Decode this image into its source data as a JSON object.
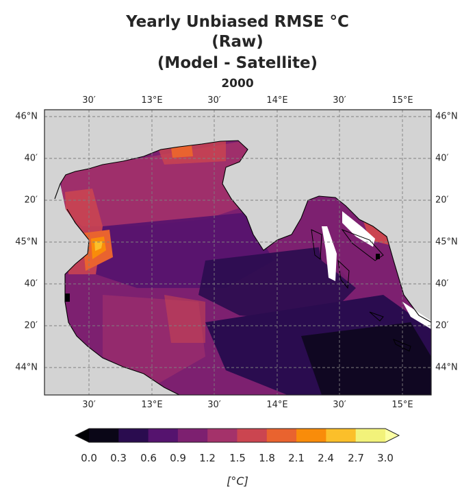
{
  "title": {
    "line1": "Yearly Unbiased RMSE °C",
    "line2": "(Raw)",
    "line3": "(Model - Satellite)"
  },
  "subtitle": "2000",
  "map": {
    "lon_ticks": [
      "30′",
      "13°E",
      "30′",
      "14°E",
      "30′",
      "15°E"
    ],
    "lat_ticks": [
      "46°N",
      "40′",
      "20′",
      "45°N",
      "40′",
      "20′",
      "44°N"
    ],
    "land_color": "#d3d3d3",
    "grid": true
  },
  "colorbar": {
    "ticks": [
      "0.0",
      "0.3",
      "0.6",
      "0.9",
      "1.2",
      "1.5",
      "1.8",
      "2.1",
      "2.4",
      "2.7",
      "3.0"
    ],
    "label": "[°C]",
    "colors": [
      "#0a0617",
      "#2a0c4f",
      "#55136e",
      "#7d2070",
      "#a4326a",
      "#cb4550",
      "#e9632f",
      "#f98c0a",
      "#fbbf2a",
      "#f2f27a"
    ],
    "under_color": "#000004",
    "over_color": "#fcffa4"
  }
}
